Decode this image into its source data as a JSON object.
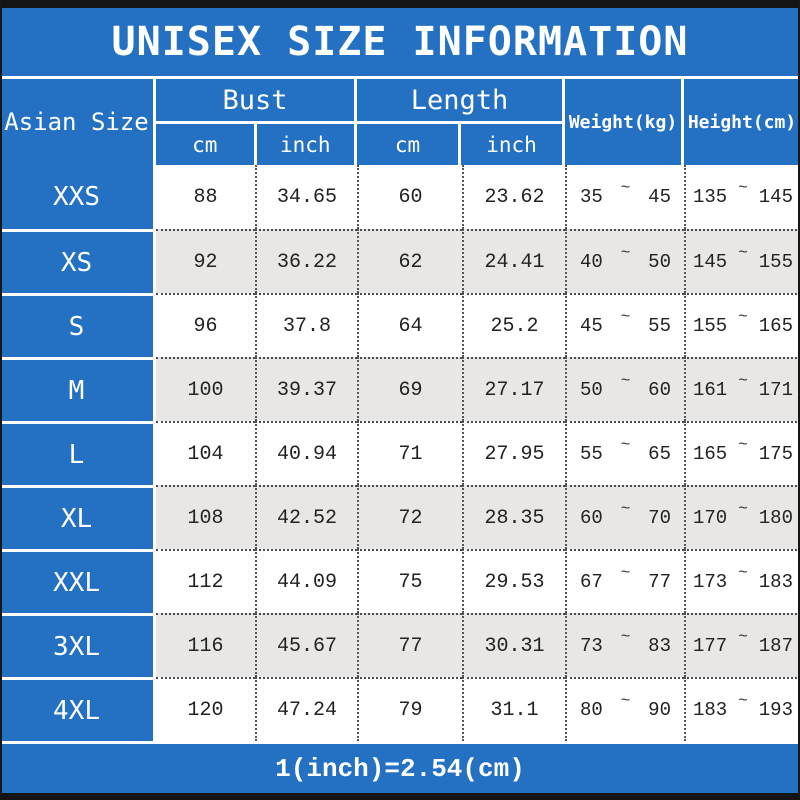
{
  "title": "UNISEX SIZE INFORMATION",
  "tilde": "~",
  "footer_note": "1(inch)=2.54(cm)",
  "colors": {
    "blue": "#2471c3",
    "row_alt": "#e8e7e5",
    "frame": "#141414",
    "text": "#222222"
  },
  "header": {
    "size_col": "Asian Size",
    "bust_label": "Bust",
    "bust_cm": "cm",
    "bust_inch": "inch",
    "length_label": "Length",
    "length_cm": "cm",
    "length_inch": "inch",
    "weight_label": "Weight(kg)",
    "height_label": "Height(cm)"
  },
  "rows": [
    {
      "size": "XXS",
      "bust_cm": "88",
      "bust_inch": "34.65",
      "length_cm": "60",
      "length_inch": "23.62",
      "weight_min": "35",
      "weight_max": "45",
      "height_min": "135",
      "height_max": "145"
    },
    {
      "size": "XS",
      "bust_cm": "92",
      "bust_inch": "36.22",
      "length_cm": "62",
      "length_inch": "24.41",
      "weight_min": "40",
      "weight_max": "50",
      "height_min": "145",
      "height_max": "155"
    },
    {
      "size": "S",
      "bust_cm": "96",
      "bust_inch": "37.8",
      "length_cm": "64",
      "length_inch": "25.2",
      "weight_min": "45",
      "weight_max": "55",
      "height_min": "155",
      "height_max": "165"
    },
    {
      "size": "M",
      "bust_cm": "100",
      "bust_inch": "39.37",
      "length_cm": "69",
      "length_inch": "27.17",
      "weight_min": "50",
      "weight_max": "60",
      "height_min": "161",
      "height_max": "171"
    },
    {
      "size": "L",
      "bust_cm": "104",
      "bust_inch": "40.94",
      "length_cm": "71",
      "length_inch": "27.95",
      "weight_min": "55",
      "weight_max": "65",
      "height_min": "165",
      "height_max": "175"
    },
    {
      "size": "XL",
      "bust_cm": "108",
      "bust_inch": "42.52",
      "length_cm": "72",
      "length_inch": "28.35",
      "weight_min": "60",
      "weight_max": "70",
      "height_min": "170",
      "height_max": "180"
    },
    {
      "size": "XXL",
      "bust_cm": "112",
      "bust_inch": "44.09",
      "length_cm": "75",
      "length_inch": "29.53",
      "weight_min": "67",
      "weight_max": "77",
      "height_min": "173",
      "height_max": "183"
    },
    {
      "size": "3XL",
      "bust_cm": "116",
      "bust_inch": "45.67",
      "length_cm": "77",
      "length_inch": "30.31",
      "weight_min": "73",
      "weight_max": "83",
      "height_min": "177",
      "height_max": "187"
    },
    {
      "size": "4XL",
      "bust_cm": "120",
      "bust_inch": "47.24",
      "length_cm": "79",
      "length_inch": "31.1",
      "weight_min": "80",
      "weight_max": "90",
      "height_min": "183",
      "height_max": "193"
    }
  ],
  "chart_data": {
    "type": "table",
    "title": "UNISEX SIZE INFORMATION",
    "columns": [
      "Asian Size",
      "Bust cm",
      "Bust inch",
      "Length cm",
      "Length inch",
      "Weight(kg)",
      "Height(cm)"
    ],
    "rows": [
      [
        "XXS",
        88,
        34.65,
        60,
        23.62,
        "35~45",
        "135~145"
      ],
      [
        "XS",
        92,
        36.22,
        62,
        24.41,
        "40~50",
        "145~155"
      ],
      [
        "S",
        96,
        37.8,
        64,
        25.2,
        "45~55",
        "155~165"
      ],
      [
        "M",
        100,
        39.37,
        69,
        27.17,
        "50~60",
        "161~171"
      ],
      [
        "L",
        104,
        40.94,
        71,
        27.95,
        "55~65",
        "165~175"
      ],
      [
        "XL",
        108,
        42.52,
        72,
        28.35,
        "60~70",
        "170~180"
      ],
      [
        "XXL",
        112,
        44.09,
        75,
        29.53,
        "67~77",
        "173~183"
      ],
      [
        "3XL",
        116,
        45.67,
        77,
        30.31,
        "73~83",
        "177~187"
      ],
      [
        "4XL",
        120,
        47.24,
        79,
        31.1,
        "80~90",
        "183~193"
      ]
    ],
    "note": "1(inch)=2.54(cm)"
  }
}
